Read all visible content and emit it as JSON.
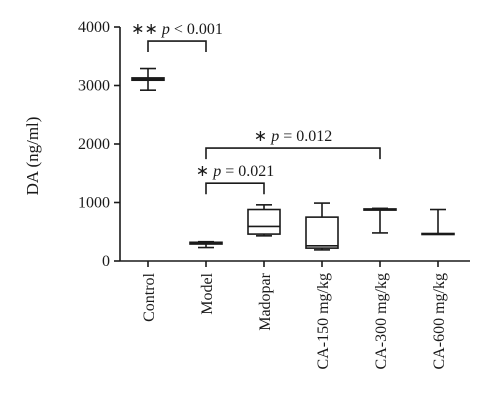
{
  "chart_data": {
    "type": "box",
    "ylabel": "DA (ng/ml)",
    "ylim": [
      0,
      4000
    ],
    "yticks": [
      "0",
      "1000",
      "2000",
      "3000",
      "4000"
    ],
    "ytick_values": [
      0,
      1000,
      2000,
      3000,
      4000
    ],
    "categories": [
      "Control",
      "Model",
      "Madopar",
      "CA-150 mg/kg",
      "CA-300 mg/kg",
      "CA-600 mg/kg"
    ],
    "boxes": [
      {
        "category": "Control",
        "min": 2920,
        "q1": 3090,
        "median": 3110,
        "q3": 3130,
        "max": 3290
      },
      {
        "category": "Model",
        "min": 230,
        "q1": 290,
        "median": 300,
        "q3": 320,
        "max": 330
      },
      {
        "category": "Madopar",
        "min": 430,
        "q1": 460,
        "median": 590,
        "q3": 880,
        "max": 960
      },
      {
        "category": "CA-150 mg/kg",
        "min": 190,
        "q1": 220,
        "median": 260,
        "q3": 750,
        "max": 990
      },
      {
        "category": "CA-300 mg/kg",
        "min": 480,
        "q1": 870,
        "median": 880,
        "q3": 890,
        "max": 900
      },
      {
        "category": "CA-600 mg/kg",
        "min": 460,
        "q1": 460,
        "median": 460,
        "q3": 470,
        "max": 880
      }
    ],
    "annotations": [
      {
        "from": "Control",
        "to": "Model",
        "stars": "∗∗",
        "p_italic": "p",
        "p_text": " < 0.001",
        "level": 3760
      },
      {
        "from": "Model",
        "to": "CA-300 mg/kg",
        "stars": "∗",
        "p_italic": "p",
        "p_text": " = 0.012",
        "level": 1930
      },
      {
        "from": "Model",
        "to": "Madopar",
        "stars": "∗",
        "p_italic": "p",
        "p_text": " = 0.021",
        "level": 1330
      }
    ]
  }
}
